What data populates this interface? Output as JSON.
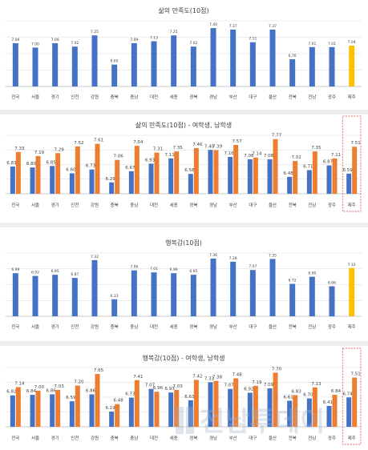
{
  "colors": {
    "blue": "#4472C4",
    "orange": "#ED7D31",
    "highlight": "#FFC000",
    "grid": "#d9d9d9",
    "axis": "#bfbfbf",
    "text": "#404040",
    "dash": "#E06666"
  },
  "watermark": {
    "icon": "newspaper-logo-icon",
    "text": "전남투데이"
  },
  "chart_data": [
    {
      "type": "bar",
      "title": "삶의 만족도(10점)",
      "categories": [
        "전국",
        "서울",
        "경기",
        "인천",
        "강원",
        "충북",
        "충남",
        "대전",
        "세종",
        "경북",
        "경남",
        "부산",
        "대구",
        "울산",
        "전북",
        "전남",
        "광주",
        "제주"
      ],
      "series": [
        {
          "values": [
            7.09,
            7.0,
            7.09,
            7.02,
            7.25,
            6.65,
            7.09,
            7.13,
            7.25,
            7.02,
            7.4,
            7.37,
            7.11,
            7.37,
            6.76,
            7.01,
            7.01,
            7.04
          ]
        }
      ],
      "highlight_index": 17,
      "ylim": [
        6.2,
        7.55
      ],
      "grid": true
    },
    {
      "type": "bar",
      "title": "삶의 만족도(10점) - 여학생, 남학생",
      "categories": [
        "전국",
        "서울",
        "경기",
        "인천",
        "강원",
        "충북",
        "충남",
        "대전",
        "세종",
        "경북",
        "경남",
        "부산",
        "대구",
        "울산",
        "전북",
        "전남",
        "광주",
        "제주"
      ],
      "series": [
        {
          "values": [
            6.83,
            6.8,
            6.85,
            6.6,
            6.73,
            6.29,
            6.67,
            6.93,
            7.11,
            6.58,
            7.4,
            7.16,
            7.08,
            7.08,
            6.48,
            6.71,
            6.87,
            6.59
          ]
        },
        {
          "values": [
            7.33,
            7.19,
            7.29,
            7.52,
            7.61,
            7.06,
            7.54,
            7.31,
            7.35,
            7.46,
            7.39,
            7.57,
            7.14,
            7.77,
            7.02,
            7.35,
            7.11,
            7.51
          ]
        }
      ],
      "highlight_index": 17,
      "ylim": [
        5.9,
        7.9
      ],
      "grid": true
    },
    {
      "type": "bar",
      "title": "행복감(10점)",
      "categories": [
        "전국",
        "서울",
        "경기",
        "인천",
        "강원",
        "충북",
        "충남",
        "대전",
        "세종",
        "경북",
        "경남",
        "부산",
        "대구",
        "울산",
        "전북",
        "전남",
        "광주",
        "제주"
      ],
      "series": [
        {
          "values": [
            6.99,
            6.92,
            6.95,
            6.87,
            7.32,
            6.33,
            7.06,
            7.01,
            6.99,
            6.95,
            7.36,
            7.28,
            7.07,
            7.35,
            6.72,
            6.9,
            6.66,
            7.12
          ]
        }
      ],
      "highlight_index": 17,
      "ylim": [
        5.9,
        7.5
      ],
      "grid": true
    },
    {
      "type": "bar",
      "title": "행복감(10점) - 여학생, 남학생",
      "categories": [
        "전국",
        "서울",
        "경기",
        "인천",
        "강원",
        "충북",
        "충남",
        "대전",
        "세종",
        "경북",
        "경남",
        "부산",
        "대구",
        "울산",
        "전북",
        "전남",
        "광주",
        "제주"
      ],
      "series": [
        {
          "values": [
            6.82,
            6.84,
            6.86,
            6.59,
            6.86,
            6.19,
            6.73,
            7.07,
            6.93,
            6.63,
            7.33,
            7.07,
            6.92,
            7.09,
            6.61,
            6.7,
            6.41,
            6.74
          ]
        },
        {
          "values": [
            7.14,
            7.0,
            7.03,
            7.2,
            7.65,
            6.48,
            7.41,
            6.96,
            7.03,
            7.42,
            7.38,
            7.48,
            7.19,
            7.7,
            6.83,
            7.13,
            6.84,
            7.51
          ]
        }
      ],
      "highlight_index": 17,
      "ylim": [
        5.6,
        7.9
      ],
      "grid": true
    }
  ]
}
